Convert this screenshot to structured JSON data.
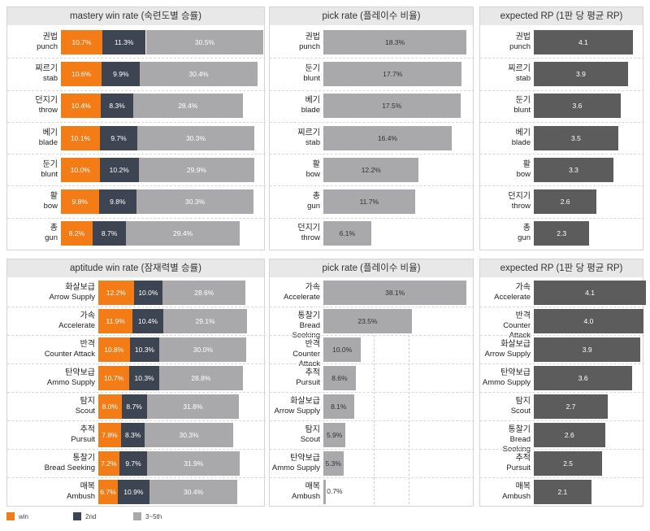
{
  "legend": [
    {
      "label": "win",
      "color": "#f47c16"
    },
    {
      "label": "2nd",
      "color": "#3d4452"
    },
    {
      "label": "3~5th",
      "color": "#a9a9ab"
    }
  ],
  "chart_data": [
    {
      "type": "bar",
      "stacked": true,
      "orientation": "horizontal",
      "title": "mastery win rate (숙련도별 승률)",
      "categories": [
        {
          "ko": "권법",
          "en": "punch"
        },
        {
          "ko": "찌르기",
          "en": "stab"
        },
        {
          "ko": "던지기",
          "en": "throw"
        },
        {
          "ko": "베기",
          "en": "blade"
        },
        {
          "ko": "둔기",
          "en": "blunt"
        },
        {
          "ko": "활",
          "en": "bow"
        },
        {
          "ko": "총",
          "en": "gun"
        }
      ],
      "series": [
        {
          "name": "win",
          "values": [
            10.7,
            10.6,
            10.4,
            10.1,
            10.0,
            9.8,
            8.2
          ]
        },
        {
          "name": "2nd",
          "values": [
            11.3,
            9.9,
            8.3,
            9.7,
            10.2,
            9.8,
            8.7
          ]
        },
        {
          "name": "3~5th",
          "values": [
            30.5,
            30.4,
            28.4,
            30.3,
            29.9,
            30.3,
            29.4
          ]
        }
      ],
      "value_format": "percent"
    },
    {
      "type": "bar",
      "orientation": "horizontal",
      "title": "pick rate (플레이수 비율)",
      "categories": [
        {
          "ko": "권법",
          "en": "punch"
        },
        {
          "ko": "둔기",
          "en": "blunt"
        },
        {
          "ko": "베기",
          "en": "blade"
        },
        {
          "ko": "찌르기",
          "en": "stab"
        },
        {
          "ko": "활",
          "en": "bow"
        },
        {
          "ko": "총",
          "en": "gun"
        },
        {
          "ko": "던지기",
          "en": "throw"
        }
      ],
      "values": [
        18.3,
        17.7,
        17.5,
        16.4,
        12.2,
        11.7,
        6.1
      ],
      "value_format": "percent"
    },
    {
      "type": "bar",
      "orientation": "horizontal",
      "title": "expected RP (1판 당 평균 RP)",
      "categories": [
        {
          "ko": "권법",
          "en": "punch"
        },
        {
          "ko": "찌르기",
          "en": "stab"
        },
        {
          "ko": "둔기",
          "en": "blunt"
        },
        {
          "ko": "베기",
          "en": "blade"
        },
        {
          "ko": "활",
          "en": "bow"
        },
        {
          "ko": "던지기",
          "en": "throw"
        },
        {
          "ko": "총",
          "en": "gun"
        }
      ],
      "values": [
        4.1,
        3.9,
        3.6,
        3.5,
        3.3,
        2.6,
        2.3
      ],
      "value_format": "number"
    },
    {
      "type": "bar",
      "stacked": true,
      "orientation": "horizontal",
      "title": "aptitude win rate (잠재력별 승률)",
      "categories": [
        {
          "ko": "화살보급",
          "en": "Arrow Supply"
        },
        {
          "ko": "가속",
          "en": "Accelerate"
        },
        {
          "ko": "반격",
          "en": "Counter Attack"
        },
        {
          "ko": "탄약보급",
          "en": "Ammo Supply"
        },
        {
          "ko": "탐지",
          "en": "Scout"
        },
        {
          "ko": "추적",
          "en": "Pursuit"
        },
        {
          "ko": "통찰기",
          "en": "Bread Seeking"
        },
        {
          "ko": "매복",
          "en": "Ambush"
        }
      ],
      "series": [
        {
          "name": "win",
          "values": [
            12.2,
            11.9,
            10.8,
            10.7,
            8.0,
            7.8,
            7.2,
            6.7
          ]
        },
        {
          "name": "2nd",
          "values": [
            10.0,
            10.4,
            10.3,
            10.3,
            8.7,
            8.3,
            9.7,
            10.9
          ]
        },
        {
          "name": "3~5th",
          "values": [
            28.6,
            29.1,
            30.0,
            28.8,
            31.8,
            30.3,
            31.9,
            30.4
          ]
        }
      ],
      "value_format": "percent"
    },
    {
      "type": "bar",
      "orientation": "horizontal",
      "title": "pick rate (플레이수 비율)",
      "categories": [
        {
          "ko": "가속",
          "en": "Accelerate"
        },
        {
          "ko": "통찰기",
          "en": "Bread Seeking"
        },
        {
          "ko": "반격",
          "en": "Counter Attack"
        },
        {
          "ko": "추적",
          "en": "Pursuit"
        },
        {
          "ko": "화살보급",
          "en": "Arrow Supply"
        },
        {
          "ko": "탐지",
          "en": "Scout"
        },
        {
          "ko": "탄약보급",
          "en": "Ammo Supply"
        },
        {
          "ko": "매복",
          "en": "Ambush"
        }
      ],
      "values": [
        38.1,
        23.5,
        10.0,
        8.6,
        8.1,
        5.9,
        5.3,
        0.7
      ],
      "value_format": "percent"
    },
    {
      "type": "bar",
      "orientation": "horizontal",
      "title": "expected RP (1판 당 평균 RP)",
      "categories": [
        {
          "ko": "가속",
          "en": "Accelerate"
        },
        {
          "ko": "반격",
          "en": "Counter Attack"
        },
        {
          "ko": "화살보급",
          "en": "Arrow Supply"
        },
        {
          "ko": "탄약보급",
          "en": "Ammo Supply"
        },
        {
          "ko": "탐지",
          "en": "Scout"
        },
        {
          "ko": "통찰기",
          "en": "Bread Seeking"
        },
        {
          "ko": "추적",
          "en": "Pursuit"
        },
        {
          "ko": "매복",
          "en": "Ambush"
        }
      ],
      "values": [
        4.1,
        4.0,
        3.9,
        3.6,
        2.7,
        2.6,
        2.5,
        2.1
      ],
      "value_format": "number"
    }
  ]
}
